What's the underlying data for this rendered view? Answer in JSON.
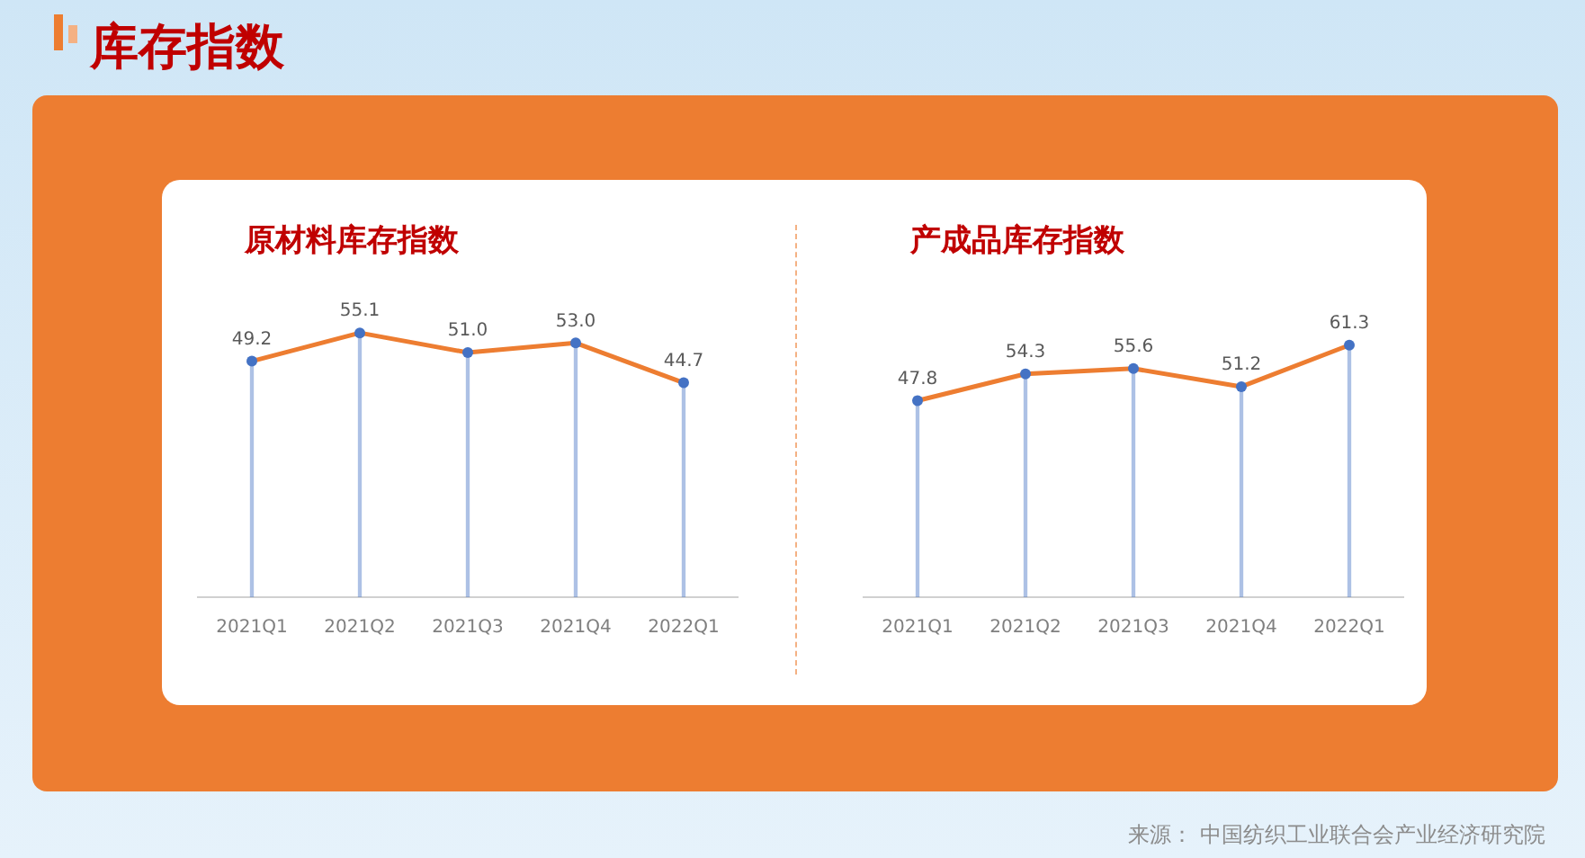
{
  "chart_data": [
    {
      "type": "line",
      "title": "原材料库存指数",
      "annotations": [
        "库存指数"
      ],
      "categories": [
        "2021Q1",
        "2021Q2",
        "2021Q3",
        "2021Q4",
        "2022Q1"
      ],
      "series": [
        {
          "type": "line",
          "color": "#ed7d31",
          "marker": "none",
          "values": [
            49.2,
            55.1,
            51.0,
            53.0,
            44.7
          ]
        },
        {
          "type": "lollipop",
          "color": "#4472c4",
          "values": [
            49.2,
            55.1,
            51.0,
            53.0,
            44.7
          ],
          "value_labels": [
            "49.2",
            "55.1",
            "51.0",
            "53.0",
            "44.7"
          ]
        }
      ],
      "marker": "circle",
      "line_style": "solid",
      "legend": false,
      "grid": false
    },
    {
      "type": "line",
      "title": "产成品库存指数",
      "annotations": [
        "来源：  中国纺织工业联合会产业经济研究院"
      ],
      "categories": [
        "2021Q1",
        "2021Q2",
        "2021Q3",
        "2021Q4",
        "2022Q1"
      ],
      "series": [
        {
          "type": "line",
          "color": "#ed7d31",
          "marker": "none",
          "values": [
            47.8,
            54.3,
            55.6,
            51.2,
            61.3
          ]
        },
        {
          "type": "lollipop",
          "color": "#4472c4",
          "values": [
            47.8,
            54.3,
            55.6,
            51.2,
            61.3
          ],
          "value_labels": [
            "47.8",
            "54.3",
            "55.6",
            "51.2",
            "61.3"
          ]
        }
      ],
      "marker": "circle",
      "line_style": "solid",
      "legend": false,
      "grid": false
    }
  ]
}
